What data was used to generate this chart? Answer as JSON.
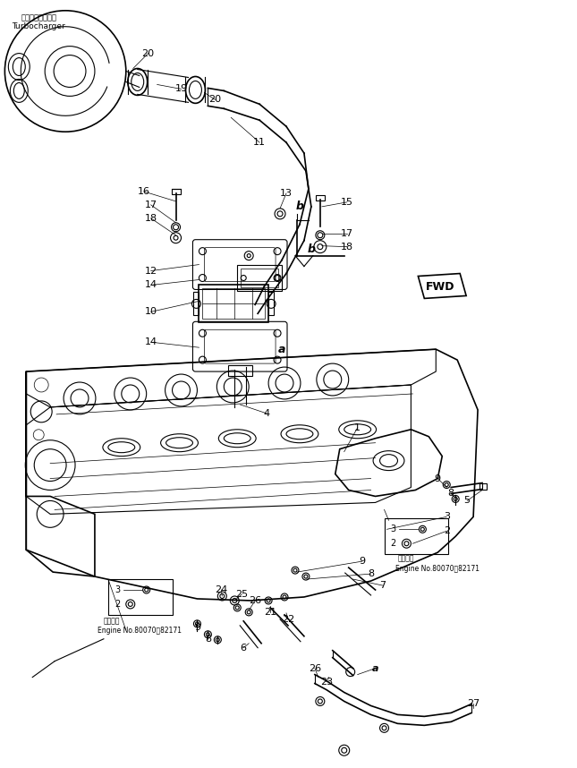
{
  "bg_color": "#ffffff",
  "fig_width": 6.45,
  "fig_height": 8.58,
  "dpi": 100,
  "labels": {
    "turbocharger_jp": "ターボチャージャ",
    "turbocharger_en": "Turbocharger",
    "fwd": "FWD",
    "engine_note1_jp": "適用号機",
    "engine_note2": "Engine No.80070～82171"
  }
}
